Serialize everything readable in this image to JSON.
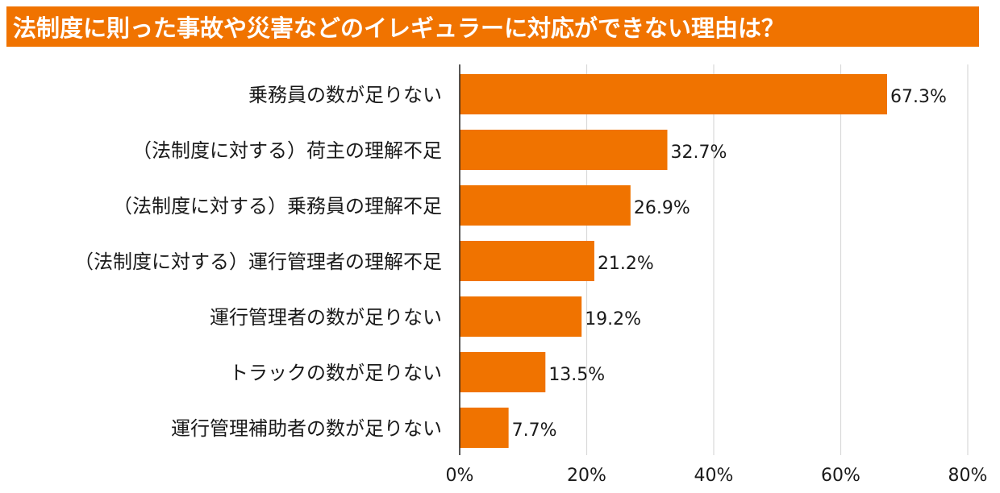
{
  "title": "法制度に則った事故や災害などのイレギュラーに対応ができない理由は？",
  "colors": {
    "accent": "#F07300",
    "bar": "#F07300",
    "grid": "#D9D9D9",
    "axis": "#222222",
    "text": "#1A1A1A"
  },
  "chart_data": {
    "type": "bar",
    "orientation": "horizontal",
    "title": "法制度に則った事故や災害などのイレギュラーに対応ができない理由は？",
    "categories": [
      "乗務員の数が足りない",
      "（法制度に対する）荷主の理解不足",
      "（法制度に対する）乗務員の理解不足",
      "（法制度に対する）運行管理者の理解不足",
      "運行管理者の数が足りない",
      "トラックの数が足りない",
      "運行管理補助者の数が足りない"
    ],
    "values": [
      67.3,
      32.7,
      26.9,
      21.2,
      19.2,
      13.5,
      7.7
    ],
    "value_labels": [
      "67.3%",
      "32.7%",
      "26.9%",
      "21.2%",
      "19.2%",
      "13.5%",
      "7.7%"
    ],
    "xlim": [
      0,
      80
    ],
    "xticks": [
      0,
      20,
      40,
      60,
      80
    ],
    "xtick_labels": [
      "0%",
      "20%",
      "40%",
      "60%",
      "80%"
    ],
    "xlabel": "",
    "ylabel": "",
    "grid": true,
    "legend": false
  }
}
